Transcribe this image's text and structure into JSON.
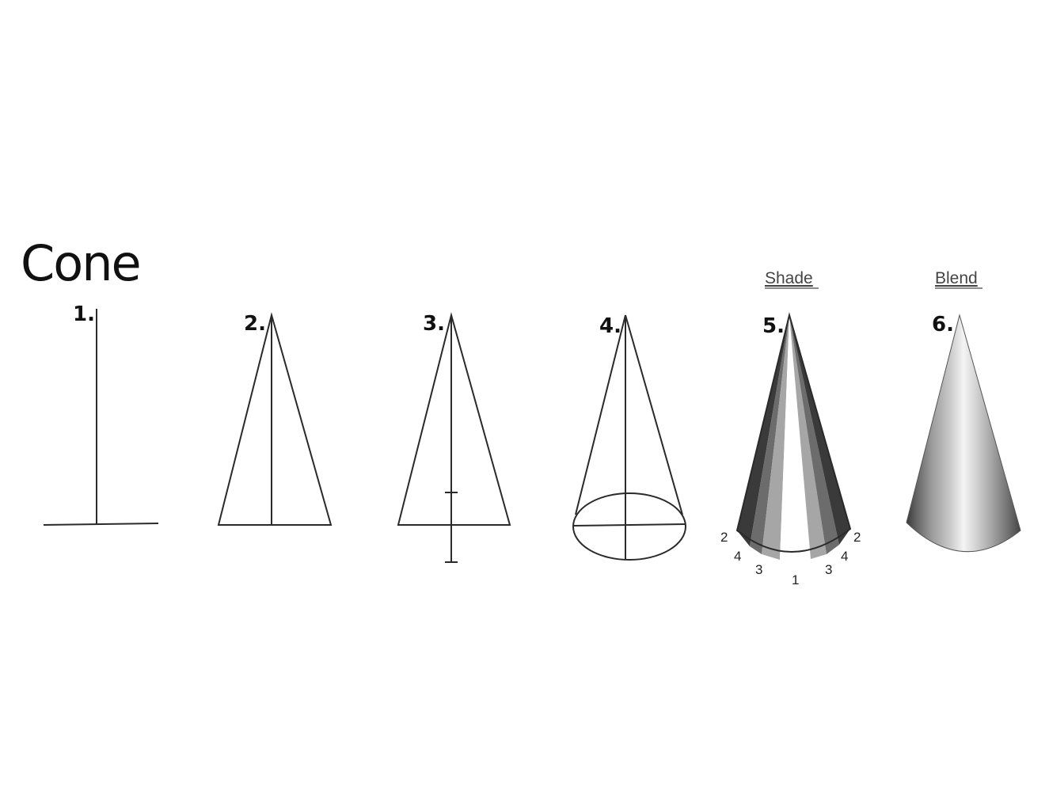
{
  "title": "Cone",
  "steps": [
    {
      "number": "1."
    },
    {
      "number": "2."
    },
    {
      "number": "3."
    },
    {
      "number": "4."
    },
    {
      "number": "5.",
      "caption": "Shade"
    },
    {
      "number": "6.",
      "caption": "Blend"
    }
  ],
  "shade_numbers": {
    "left": [
      "2",
      "4",
      "3"
    ],
    "center": "1",
    "right": [
      "3",
      "4",
      "2"
    ]
  }
}
